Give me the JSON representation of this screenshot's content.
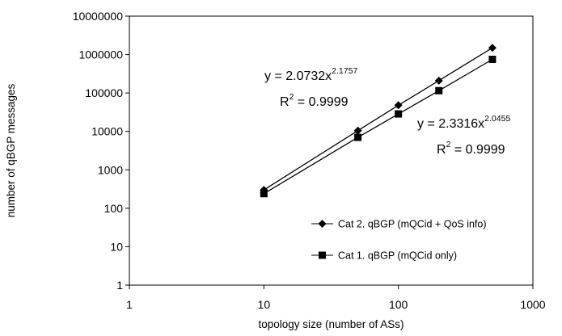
{
  "chart_data": {
    "type": "scatter",
    "title": "",
    "xlabel": "topology size (number of ASs)",
    "ylabel": "number of qBGP messages",
    "xscale": "log",
    "yscale": "log",
    "xlim": [
      1,
      1000
    ],
    "ylim": [
      1,
      10000000
    ],
    "x_ticks": [
      "1",
      "10",
      "100",
      "1000"
    ],
    "y_ticks": [
      "1",
      "10",
      "100",
      "1000",
      "10000",
      "100000",
      "1000000",
      "10000000"
    ],
    "grid": false,
    "legend_position": "bottom-right",
    "series": [
      {
        "name": "Cat 2. qBGP (mQCid + QoS info)",
        "marker": "diamond",
        "color": "#000000",
        "x": [
          10,
          50,
          100,
          200,
          500
        ],
        "y": [
          300,
          10500,
          48000,
          210000,
          1500000
        ],
        "fit": {
          "equation_prefix": "y = 2.0732x",
          "exponent": "2.1757",
          "r2_prefix": "R",
          "r2_exp": "2",
          "r2_suffix": " = 0.9999"
        }
      },
      {
        "name": "Cat 1. qBGP (mQCid only)",
        "marker": "square",
        "color": "#000000",
        "x": [
          10,
          50,
          100,
          200,
          500
        ],
        "y": [
          240,
          7000,
          28500,
          115000,
          750000
        ],
        "fit": {
          "equation_prefix": "y = 2.3316x",
          "exponent": "2.0455",
          "r2_prefix": "R",
          "r2_exp": "2",
          "r2_suffix": " = 0.9999"
        }
      }
    ]
  }
}
